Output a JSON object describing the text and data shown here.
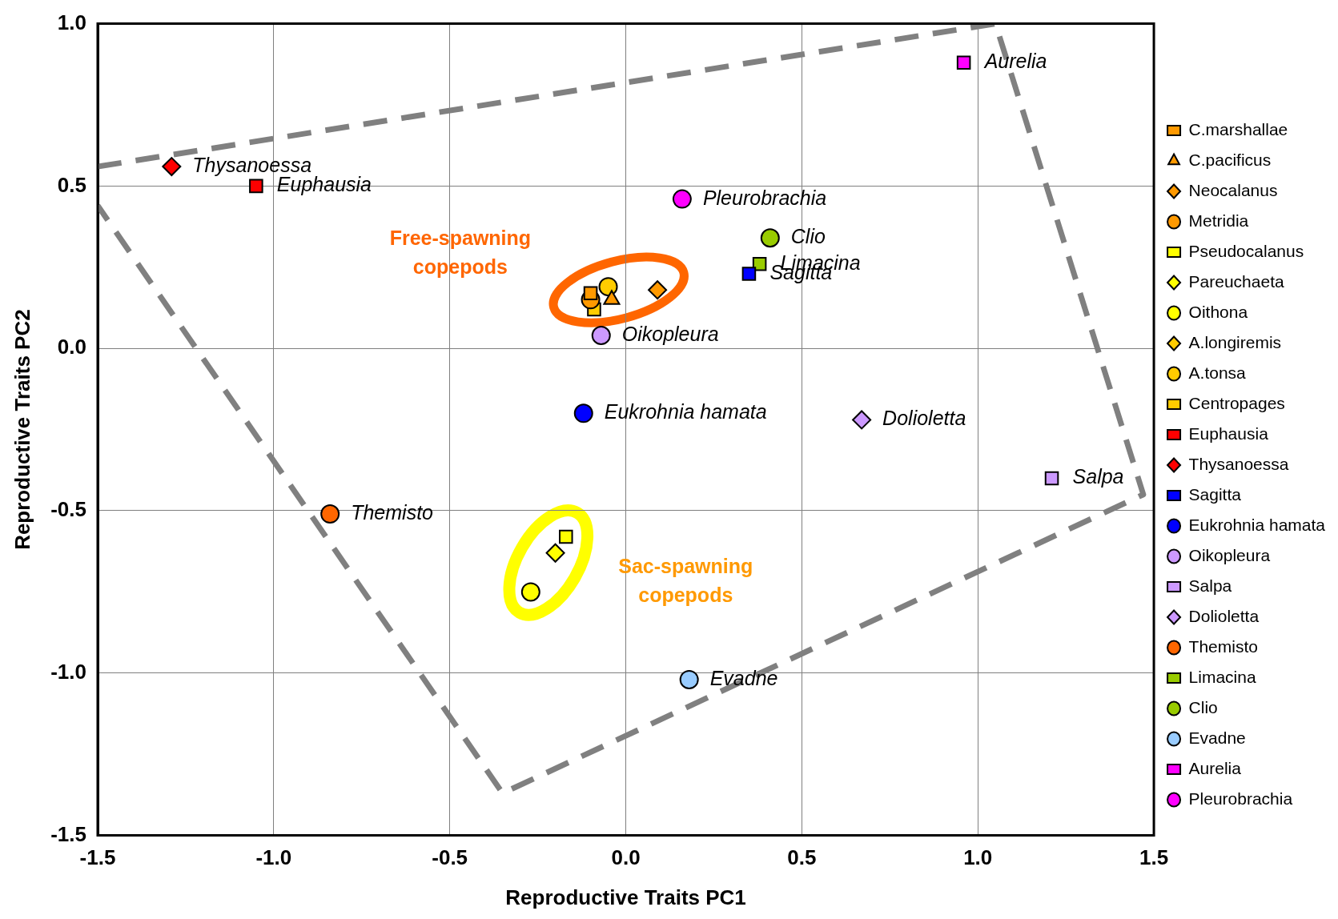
{
  "chart_data": {
    "type": "scatter",
    "xlabel": "Reproductive Traits PC1",
    "ylabel": "Reproductive Traits PC2",
    "xlim": [
      -1.5,
      1.5
    ],
    "ylim": [
      -1.5,
      1.0
    ],
    "xticks": [
      {
        "value": -1.5,
        "label": "-1.5"
      },
      {
        "value": -1,
        "label": "-1.0"
      },
      {
        "value": -0.5,
        "label": "-0.5"
      },
      {
        "value": 0,
        "label": "0.0"
      },
      {
        "value": 0.5,
        "label": "0.5"
      },
      {
        "value": 1,
        "label": "1.0"
      },
      {
        "value": 1.5,
        "label": "1.5"
      }
    ],
    "yticks": [
      {
        "value": -1.5,
        "label": "-1.5"
      },
      {
        "value": -1,
        "label": "-1.0"
      },
      {
        "value": -0.5,
        "label": "-0.5"
      },
      {
        "value": 0,
        "label": "0.0"
      },
      {
        "value": 0.5,
        "label": "0.5"
      },
      {
        "value": 1,
        "label": "1.0"
      }
    ],
    "grid": true,
    "legend": "right",
    "series": [
      {
        "name": "C.marshallae",
        "color": "#ff9900",
        "marker": "square",
        "x": [
          -0.1
        ],
        "values": [
          0.17
        ]
      },
      {
        "name": "C.pacificus",
        "color": "#ff9900",
        "marker": "triangle",
        "x": [
          -0.04
        ],
        "values": [
          0.15
        ]
      },
      {
        "name": "Neocalanus",
        "color": "#ff9900",
        "marker": "diamond",
        "x": [
          0.09
        ],
        "values": [
          0.18
        ]
      },
      {
        "name": "Metridia",
        "color": "#ff9900",
        "marker": "circle",
        "x": [
          -0.1
        ],
        "values": [
          0.15
        ]
      },
      {
        "name": "Pseudocalanus",
        "color": "#ffff00",
        "marker": "square",
        "x": [
          -0.17
        ],
        "values": [
          -0.58
        ]
      },
      {
        "name": "Pareuchaeta",
        "color": "#ffff00",
        "marker": "diamond",
        "x": [
          -0.2
        ],
        "values": [
          -0.63
        ]
      },
      {
        "name": "Oithona",
        "color": "#ffff00",
        "marker": "circle",
        "x": [
          -0.27
        ],
        "values": [
          -0.75
        ]
      },
      {
        "name": "A.longiremis",
        "color": "#ffcc00",
        "marker": "diamond",
        "x": [
          null
        ],
        "values": [
          null
        ]
      },
      {
        "name": "A.tonsa",
        "color": "#ffcc00",
        "marker": "circle",
        "x": [
          -0.05
        ],
        "values": [
          0.19
        ]
      },
      {
        "name": "Centropages",
        "color": "#ffcc00",
        "marker": "square",
        "x": [
          -0.09
        ],
        "values": [
          0.12
        ]
      },
      {
        "name": "Euphausia",
        "color": "#ff0000",
        "marker": "square",
        "x": [
          -1.05
        ],
        "values": [
          0.5
        ]
      },
      {
        "name": "Thysanoessa",
        "color": "#ff0000",
        "marker": "diamond",
        "x": [
          -1.29
        ],
        "values": [
          0.56
        ]
      },
      {
        "name": "Sagitta",
        "color": "#0000ff",
        "marker": "square",
        "x": [
          0.35
        ],
        "values": [
          0.23
        ]
      },
      {
        "name": "Eukrohnia hamata",
        "color": "#0000ff",
        "marker": "circle",
        "x": [
          -0.12
        ],
        "values": [
          -0.2
        ]
      },
      {
        "name": "Oikopleura",
        "color": "#cc99ff",
        "marker": "circle",
        "x": [
          -0.07
        ],
        "values": [
          0.04
        ]
      },
      {
        "name": "Salpa",
        "color": "#cc99ff",
        "marker": "square",
        "x": [
          1.21
        ],
        "values": [
          -0.4
        ]
      },
      {
        "name": "Dolioletta",
        "color": "#cc99ff",
        "marker": "diamond",
        "x": [
          0.67
        ],
        "values": [
          -0.22
        ]
      },
      {
        "name": "Themisto",
        "color": "#ff6600",
        "marker": "circle",
        "x": [
          -0.84
        ],
        "values": [
          -0.51
        ]
      },
      {
        "name": "Limacina",
        "color": "#99cc00",
        "marker": "square",
        "x": [
          0.38
        ],
        "values": [
          0.26
        ]
      },
      {
        "name": "Clio",
        "color": "#99cc00",
        "marker": "circle",
        "x": [
          0.41
        ],
        "values": [
          0.34
        ]
      },
      {
        "name": "Evadne",
        "color": "#99ccff",
        "marker": "circle",
        "x": [
          0.18
        ],
        "values": [
          -1.02
        ]
      },
      {
        "name": "Aurelia",
        "color": "#ff00ff",
        "marker": "square",
        "x": [
          0.96
        ],
        "values": [
          0.88
        ]
      },
      {
        "name": "Pleurobrachia",
        "color": "#ff00ff",
        "marker": "circle",
        "x": [
          0.16
        ],
        "values": [
          0.46
        ]
      },
      {
        "type": "line",
        "color": "#808080",
        "marker": "none",
        "line_style": "dashed",
        "x": [
          -1.5,
          1.05,
          1.47,
          -0.35,
          -1.5
        ],
        "values": [
          0.56,
          1.0,
          -0.45,
          -1.37,
          0.44
        ]
      }
    ],
    "annotations": [
      "Free-spawning copepods",
      "Sac-spawning copepods",
      {
        "text": "Thysanoessa",
        "x": -1.29,
        "y": 0.56
      },
      {
        "text": "Euphausia",
        "x": -1.05,
        "y": 0.5
      },
      {
        "text": "Aurelia",
        "x": 0.96,
        "y": 0.88
      },
      {
        "text": "Pleurobrachia",
        "x": 0.16,
        "y": 0.46
      },
      {
        "text": "Clio",
        "x": 0.41,
        "y": 0.34
      },
      {
        "text": "Limacina",
        "x": 0.38,
        "y": 0.26
      },
      {
        "text": "Sagitta",
        "x": 0.35,
        "y": 0.23
      },
      {
        "text": "Oikopleura",
        "x": -0.07,
        "y": 0.04
      },
      {
        "text": "Eukrohnia hamata",
        "x": -0.12,
        "y": -0.2
      },
      {
        "text": "Dolioletta",
        "x": 0.67,
        "y": -0.22
      },
      {
        "text": "Salpa",
        "x": 1.21,
        "y": -0.4
      },
      {
        "text": "Themisto",
        "x": -0.84,
        "y": -0.51
      },
      {
        "text": "Evadne",
        "x": 0.18,
        "y": -1.02
      }
    ]
  }
}
